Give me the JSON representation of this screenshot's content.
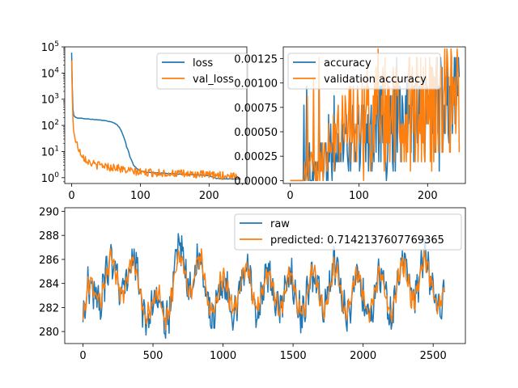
{
  "colors": {
    "series1": "#1f77b4",
    "series2": "#ff7f0e"
  },
  "chart_data": [
    {
      "type": "line",
      "yscale": "log",
      "xlim": [
        -10,
        255
      ],
      "ylim": [
        0.6,
        100000
      ],
      "xticks": [
        0,
        100,
        200
      ],
      "yticks": [
        1,
        10,
        100,
        1000,
        10000,
        100000
      ],
      "ytick_labels": [
        {
          "base": "10",
          "exp": "0"
        },
        {
          "base": "10",
          "exp": "1"
        },
        {
          "base": "10",
          "exp": "2"
        },
        {
          "base": "10",
          "exp": "3"
        },
        {
          "base": "10",
          "exp": "4"
        },
        {
          "base": "10",
          "exp": "5"
        }
      ],
      "legend_position": "upper-right",
      "x_range": [
        0,
        246
      ],
      "series": [
        {
          "name": "loss",
          "color": "#1f77b4",
          "x": [
            0,
            1,
            2,
            3,
            4,
            6,
            10,
            15,
            20,
            30,
            40,
            50,
            55,
            60,
            65,
            70,
            75,
            80,
            85,
            90,
            95,
            100,
            110,
            130,
            150,
            180,
            200,
            210,
            220,
            246
          ],
          "y": [
            60000,
            3000,
            400,
            260,
            220,
            200,
            190,
            185,
            180,
            170,
            160,
            150,
            140,
            130,
            110,
            80,
            40,
            15,
            6,
            3,
            2.2,
            1.8,
            1.6,
            1.5,
            1.4,
            1.3,
            1.2,
            0.95,
            0.9,
            0.9
          ]
        },
        {
          "name": "val_loss",
          "color": "#ff7f0e",
          "x": [
            0,
            1,
            2,
            3,
            5,
            8,
            12,
            18,
            25,
            35,
            45,
            55,
            65,
            75,
            85,
            100,
            130,
            160,
            190,
            220,
            246
          ],
          "y": [
            30000,
            1500,
            150,
            60,
            30,
            18,
            10,
            6,
            4,
            3,
            3,
            2.5,
            2.5,
            2,
            1.8,
            1.6,
            1.5,
            1.4,
            1.3,
            1.2,
            1.1
          ],
          "noise": 0.35
        }
      ]
    },
    {
      "type": "line",
      "xlim": [
        -10,
        255
      ],
      "ylim": [
        -3e-05,
        0.00137
      ],
      "xticks": [
        0,
        100,
        200
      ],
      "yticks": [
        0,
        0.00025,
        0.0005,
        0.00075,
        0.001,
        0.00125
      ],
      "ytick_labels": [
        "0.00000",
        "0.00025",
        "0.00050",
        "0.00075",
        "0.00100",
        "0.00125"
      ],
      "legend_position": "upper-left",
      "x_range": [
        0,
        246
      ],
      "levels": [
        0,
        9.67e-05,
        0.000193,
        0.00029,
        0.000387,
        0.000483,
        0.00058,
        0.000677,
        0.000773,
        0.00087,
        0.000967,
        0.00106,
        0.00116,
        0.00126,
        0.00135
      ],
      "series": [
        {
          "name": "accuracy",
          "color": "#1f77b4",
          "x": [
            0,
            30,
            60,
            90,
            120,
            150,
            180,
            200,
            220,
            246
          ],
          "y": [
            0,
            0.0001,
            0.0003,
            0.0004,
            0.0005,
            0.0005,
            0.0006,
            0.0007,
            0.0008,
            0.0008
          ]
        },
        {
          "name": "validation accuracy",
          "color": "#ff7f0e",
          "x": [
            0,
            30,
            60,
            90,
            120,
            150,
            180,
            200,
            220,
            246
          ],
          "y": [
            0,
            0.0001,
            0.0004,
            0.0006,
            0.0006,
            0.00065,
            0.0007,
            0.0007,
            0.0008,
            0.0008
          ]
        }
      ]
    },
    {
      "type": "line",
      "xlim": [
        -130,
        2730
      ],
      "ylim": [
        279.0,
        290.3
      ],
      "xticks": [
        0,
        500,
        1000,
        1500,
        2000,
        2500
      ],
      "yticks": [
        280,
        282,
        284,
        286,
        288,
        290
      ],
      "legend_position": "upper-right",
      "x_range": [
        0,
        2580
      ],
      "series": [
        {
          "name": "raw",
          "color": "#1f77b4",
          "x": [
            0,
            100,
            200,
            300,
            400,
            500,
            600,
            700,
            800,
            900,
            1000,
            1100,
            1200,
            1300,
            1400,
            1500,
            1600,
            1700,
            1800,
            1900,
            2000,
            2100,
            2200,
            2300,
            2400,
            2500,
            2580
          ],
          "y": [
            281,
            284,
            284.5,
            285,
            284,
            281,
            282.5,
            285.5,
            285,
            283,
            282.5,
            283.5,
            284,
            283,
            283.5,
            283,
            283,
            283.5,
            284,
            283,
            283,
            283,
            283,
            284.5,
            284.5,
            284.5,
            282
          ]
        },
        {
          "name": "predicted: 0.7142137607769365",
          "color": "#ff7f0e",
          "x": [
            0,
            100,
            200,
            300,
            400,
            500,
            600,
            700,
            800,
            900,
            1000,
            1100,
            1200,
            1300,
            1400,
            1500,
            1600,
            1700,
            1800,
            1900,
            2000,
            2100,
            2200,
            2300,
            2400,
            2500,
            2580
          ],
          "y": [
            281,
            284,
            284.3,
            284.8,
            284,
            281.5,
            282.5,
            285,
            285,
            283.3,
            282.8,
            283.5,
            283.8,
            283.2,
            283.5,
            283.2,
            283.1,
            283.4,
            283.8,
            283.1,
            283.1,
            283.1,
            283.2,
            284.2,
            284.2,
            284.3,
            282
          ]
        }
      ]
    }
  ]
}
